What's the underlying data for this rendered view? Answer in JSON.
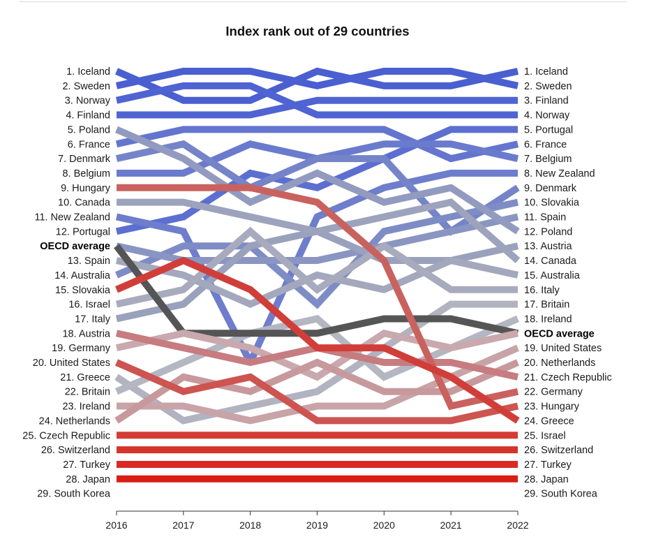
{
  "chart_data": {
    "type": "line",
    "title": "Index rank out of 29 countries",
    "x": [
      2016,
      2017,
      2018,
      2019,
      2020,
      2021,
      2022
    ],
    "ylabel": "",
    "xlabel": "",
    "y_inverted": true,
    "ylim": [
      1,
      30
    ],
    "left_labels": [
      "1. Iceland",
      "2. Sweden",
      "3. Norway",
      "4. Finland",
      "5. Poland",
      "6. France",
      "7. Denmark",
      "8. Belgium",
      "9. Hungary",
      "10. Canada",
      "11. New Zealand",
      "12. Portugal",
      "OECD average",
      "13. Spain",
      "14. Australia",
      "15. Slovakia",
      "16. Israel",
      "17. Italy",
      "18. Austria",
      "19. Germany",
      "20. United States",
      "21. Greece",
      "22. Britain",
      "23. Ireland",
      "24. Netherlands",
      "25. Czech Republic",
      "26. Switzerland",
      "27. Turkey",
      "28. Japan",
      "29. South Korea"
    ],
    "right_labels": [
      "1. Iceland",
      "2. Sweden",
      "3. Finland",
      "4. Norway",
      "5. Portugal",
      "6. France",
      "7. Belgium",
      "8. New Zealand",
      "9. Denmark",
      "10. Slovakia",
      "11. Spain",
      "12. Poland",
      "13. Austria",
      "14. Canada",
      "15. Australia",
      "16. Italy",
      "17. Britain",
      "18. Ireland",
      "OECD average",
      "19. United States",
      "20. Netherlands",
      "21. Czech Republic",
      "22. Germany",
      "23. Hungary",
      "24. Greece",
      "25. Israel",
      "26. Switzerland",
      "27. Turkey",
      "28. Japan",
      "29. South Korea"
    ],
    "series": [
      {
        "name": "Iceland",
        "color": "#4a5fd0",
        "values": [
          1,
          3,
          3,
          1,
          2,
          2,
          1
        ]
      },
      {
        "name": "Sweden",
        "color": "#4a5fd0",
        "values": [
          2,
          1,
          1,
          2,
          1,
          1,
          2
        ]
      },
      {
        "name": "Norway",
        "color": "#4f64d2",
        "values": [
          3,
          2,
          2,
          4,
          4,
          4,
          4
        ]
      },
      {
        "name": "Finland",
        "color": "#4f64d2",
        "values": [
          4,
          4,
          4,
          3,
          3,
          3,
          3
        ]
      },
      {
        "name": "Portugal",
        "color": "#5c6fd1",
        "values": [
          12,
          11,
          8,
          9,
          7,
          5,
          5
        ]
      },
      {
        "name": "France",
        "color": "#6475cf",
        "values": [
          6,
          5,
          5,
          5,
          5,
          7,
          6
        ]
      },
      {
        "name": "Belgium",
        "color": "#6a7bcd",
        "values": [
          8,
          8,
          6,
          7,
          6,
          6,
          7
        ]
      },
      {
        "name": "New Zealand",
        "color": "#6e7ecc",
        "values": [
          11,
          12,
          21,
          11,
          9,
          8,
          8
        ]
      },
      {
        "name": "Denmark",
        "color": "#7584c8",
        "values": [
          7,
          6,
          9,
          7,
          7,
          12,
          9
        ]
      },
      {
        "name": "Slovakia",
        "color": "#7e8cc6",
        "values": [
          15,
          13,
          13,
          17,
          12,
          11,
          10
        ]
      },
      {
        "name": "Spain",
        "color": "#8a95c2",
        "values": [
          13,
          14,
          14,
          14,
          13,
          12,
          11
        ]
      },
      {
        "name": "Poland",
        "color": "#929bbf",
        "values": [
          5,
          7,
          10,
          8,
          10,
          9,
          12
        ]
      },
      {
        "name": "Austria",
        "color": "#9aa1bd",
        "values": [
          18,
          17,
          13,
          12,
          14,
          14,
          13
        ]
      },
      {
        "name": "Canada",
        "color": "#9da3bc",
        "values": [
          10,
          10,
          11,
          12,
          11,
          10,
          14
        ]
      },
      {
        "name": "Australia",
        "color": "#a3a8bd",
        "values": [
          14,
          15,
          17,
          15,
          16,
          14,
          15
        ]
      },
      {
        "name": "Italy",
        "color": "#a8abbd",
        "values": [
          17,
          16,
          12,
          16,
          13,
          16,
          16
        ]
      },
      {
        "name": "Britain",
        "color": "#b1b3c0",
        "values": [
          22,
          25,
          24,
          23,
          20,
          17,
          17
        ]
      },
      {
        "name": "Ireland",
        "color": "#b4b6c2",
        "values": [
          23,
          21,
          19,
          18,
          22,
          20,
          18
        ]
      },
      {
        "name": "OECD average",
        "color": "#555555",
        "values": [
          13,
          19,
          19,
          19,
          18,
          18,
          19
        ]
      },
      {
        "name": "United States",
        "color": "#c9a9ae",
        "values": [
          20,
          19,
          20,
          22,
          19,
          20,
          19
        ]
      },
      {
        "name": "Netherlands",
        "color": "#c8a3a7",
        "values": [
          24,
          24,
          25,
          24,
          24,
          22,
          20
        ]
      },
      {
        "name": "Czech Republic",
        "color": "#c7999d",
        "values": [
          25,
          22,
          23,
          21,
          23,
          23,
          21
        ]
      },
      {
        "name": "Germany",
        "color": "#c67c80",
        "values": [
          19,
          20,
          21,
          20,
          21,
          21,
          22
        ]
      },
      {
        "name": "Hungary",
        "color": "#c9625f",
        "values": [
          9,
          9,
          9,
          10,
          14,
          24,
          23
        ]
      },
      {
        "name": "Greece",
        "color": "#cd5450",
        "values": [
          21,
          23,
          22,
          25,
          25,
          25,
          24
        ]
      },
      {
        "name": "Israel",
        "color": "#d13e3a",
        "values": [
          16,
          14,
          16,
          20,
          20,
          22,
          25
        ]
      },
      {
        "name": "Switzerland",
        "color": "#d43c36",
        "values": [
          26,
          26,
          26,
          26,
          26,
          26,
          26
        ]
      },
      {
        "name": "Turkey",
        "color": "#d5342d",
        "values": [
          27,
          27,
          27,
          27,
          27,
          27,
          27
        ]
      },
      {
        "name": "Japan",
        "color": "#d82a22",
        "values": [
          28,
          28,
          28,
          28,
          28,
          28,
          28
        ]
      },
      {
        "name": "South Korea",
        "color": "#d91e14",
        "values": [
          29,
          29,
          29,
          29,
          29,
          29,
          29
        ]
      }
    ]
  }
}
